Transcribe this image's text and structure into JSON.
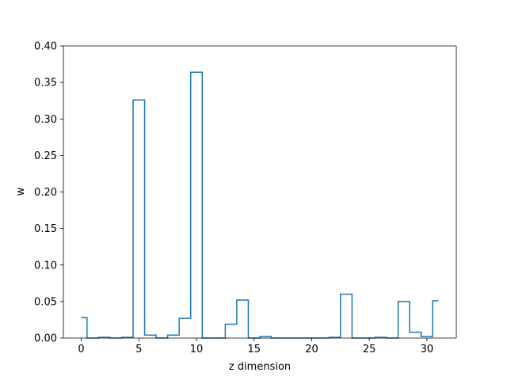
{
  "chart_data": {
    "type": "line",
    "drawstyle": "steps-mid",
    "title": "",
    "xlabel": "z dimension",
    "ylabel": "w",
    "xlim": [
      -1.55,
      32.55
    ],
    "ylim": [
      0.0,
      0.4
    ],
    "xticks": [
      0,
      5,
      10,
      15,
      20,
      25,
      30
    ],
    "yticks": [
      0.0,
      0.05,
      0.1,
      0.15,
      0.2,
      0.25,
      0.3,
      0.35,
      0.4
    ],
    "ytick_labels": [
      "0.00",
      "0.05",
      "0.10",
      "0.15",
      "0.20",
      "0.25",
      "0.30",
      "0.35",
      "0.40"
    ],
    "grid": false,
    "series": [
      {
        "color": "#1f77b4",
        "x": [
          0,
          1,
          2,
          3,
          4,
          5,
          6,
          7,
          8,
          9,
          10,
          11,
          12,
          13,
          14,
          15,
          16,
          17,
          18,
          19,
          20,
          21,
          22,
          23,
          24,
          25,
          26,
          27,
          28,
          29,
          30,
          31
        ],
        "y": [
          0.028,
          0.0,
          0.001,
          0.0,
          0.001,
          0.326,
          0.004,
          0.0,
          0.004,
          0.027,
          0.364,
          0.0,
          0.0,
          0.019,
          0.052,
          0.0,
          0.002,
          0.0,
          0.0,
          0.0,
          0.0,
          0.0,
          0.001,
          0.06,
          0.0,
          0.0,
          0.001,
          0.0,
          0.05,
          0.008,
          0.002,
          0.051
        ]
      }
    ]
  }
}
